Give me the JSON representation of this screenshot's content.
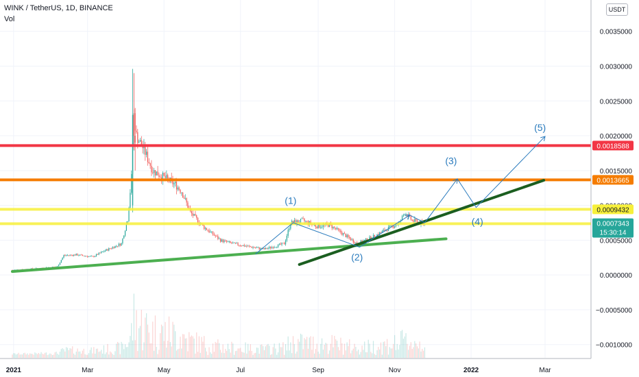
{
  "header": {
    "symbol_line": "WINK / TetherUS, 1D, BINANCE",
    "volume_label": "Vol",
    "currency_button": "USDT"
  },
  "colors": {
    "up_candle": "#26a69a",
    "down_candle": "#ef5350",
    "red_line": "#f23645",
    "orange_line": "#f57c00",
    "yellow_line": "#f7f03a",
    "green_support": "#4caf50",
    "dark_green_trend": "#1b5e20",
    "wave_annotation": "#2a7bbd",
    "price_tag": "#26a69a"
  },
  "chart_data": {
    "type": "candlestick",
    "title": "WINK / TetherUS, 1D, BINANCE",
    "x_ticks": [
      "2021",
      "Mar",
      "May",
      "Jul",
      "Sep",
      "Nov",
      "2022",
      "Mar"
    ],
    "y_ticks": [
      "0.0035000",
      "0.0030000",
      "0.0025000",
      "0.0020000",
      "0.0015000",
      "0.0010000",
      "0.0005000",
      "0.0000000",
      "−0.0005000",
      "−0.0010000"
    ],
    "ylim": [
      -0.00119,
      0.00395
    ],
    "current_price": "0.0007343",
    "countdown": "15:30:14",
    "price_levels": [
      {
        "value": 0.0018588,
        "label": "0.0018588",
        "color": "#f23645"
      },
      {
        "value": 0.0013665,
        "label": "0.0013665",
        "color": "#f57c00"
      },
      {
        "value": 0.0009432,
        "label": "0.0009432",
        "color": "#f7f03a"
      },
      {
        "value": 0.0007359,
        "label": "0.0007359",
        "color": "#f7f03a"
      }
    ],
    "trendlines": [
      {
        "name": "support",
        "color": "#4caf50",
        "points": [
          [
            "2020-12-31",
            5e-05
          ],
          [
            "2021-12-12",
            0.00052
          ]
        ]
      },
      {
        "name": "trend",
        "color": "#1b5e20",
        "points": [
          [
            "2021-08-17",
            0.00015
          ],
          [
            "2022-02-28",
            0.00136
          ]
        ]
      }
    ],
    "wave_path": [
      [
        "2021-07-13",
        0.0003
      ],
      [
        "2021-08-12",
        0.00075
      ],
      [
        "2021-10-04",
        0.0004
      ],
      [
        "2021-11-13",
        0.00086
      ],
      [
        "2021-11-25",
        0.00075
      ],
      [
        "2021-12-21",
        0.00138
      ],
      [
        "2022-01-05",
        0.00097
      ],
      [
        "2022-03-01",
        0.00199
      ]
    ],
    "wave_labels": [
      {
        "text": "(1)",
        "x": "2021-08-10",
        "y": 0.00102
      },
      {
        "text": "(2)",
        "x": "2021-10-02",
        "y": 0.00021
      },
      {
        "text": "(3)",
        "x": "2021-12-16",
        "y": 0.00159
      },
      {
        "text": "(4)",
        "x": "2022-01-06",
        "y": 0.00072
      },
      {
        "text": "(5)",
        "x": "2022-02-25",
        "y": 0.00207
      }
    ],
    "price_series": [
      [
        "2020-12-31",
        7e-05
      ],
      [
        "2021-01-20",
        9e-05
      ],
      [
        "2021-02-05",
        0.00012
      ],
      [
        "2021-02-10",
        0.00028
      ],
      [
        "2021-02-20",
        0.00029
      ],
      [
        "2021-03-05",
        0.00026
      ],
      [
        "2021-03-15",
        0.00035
      ],
      [
        "2021-03-28",
        0.00045
      ],
      [
        "2021-04-02",
        0.0008
      ],
      [
        "2021-04-05",
        0.0014
      ],
      [
        "2021-04-07",
        0.0023
      ],
      [
        "2021-04-09",
        0.002
      ],
      [
        "2021-04-15",
        0.0018
      ],
      [
        "2021-04-22",
        0.0015
      ],
      [
        "2021-05-01",
        0.0014
      ],
      [
        "2021-05-10",
        0.0013
      ],
      [
        "2021-05-15",
        0.0012
      ],
      [
        "2021-05-22",
        0.0009
      ],
      [
        "2021-06-01",
        0.0007
      ],
      [
        "2021-06-15",
        0.0005
      ],
      [
        "2021-06-25",
        0.00045
      ],
      [
        "2021-07-10",
        0.0004
      ],
      [
        "2021-07-20",
        0.00037
      ],
      [
        "2021-08-05",
        0.00045
      ],
      [
        "2021-08-10",
        0.00075
      ],
      [
        "2021-08-20",
        0.00078
      ],
      [
        "2021-08-31",
        0.0007
      ],
      [
        "2021-09-10",
        0.00072
      ],
      [
        "2021-09-20",
        0.0006
      ],
      [
        "2021-10-02",
        0.00045
      ],
      [
        "2021-10-15",
        0.00055
      ],
      [
        "2021-10-25",
        0.00065
      ],
      [
        "2021-11-05",
        0.00075
      ],
      [
        "2021-11-09",
        0.0009
      ],
      [
        "2021-11-15",
        0.00078
      ],
      [
        "2021-11-25",
        0.00073
      ]
    ],
    "candles": [
      [
        "2021-04-06",
        0.001,
        0.00296,
        0.0009,
        0.0023
      ],
      [
        "2021-04-07",
        0.0023,
        0.0029,
        0.0018,
        0.002
      ],
      [
        "2021-04-08",
        0.002,
        0.0024,
        0.0015,
        0.0019
      ]
    ]
  }
}
